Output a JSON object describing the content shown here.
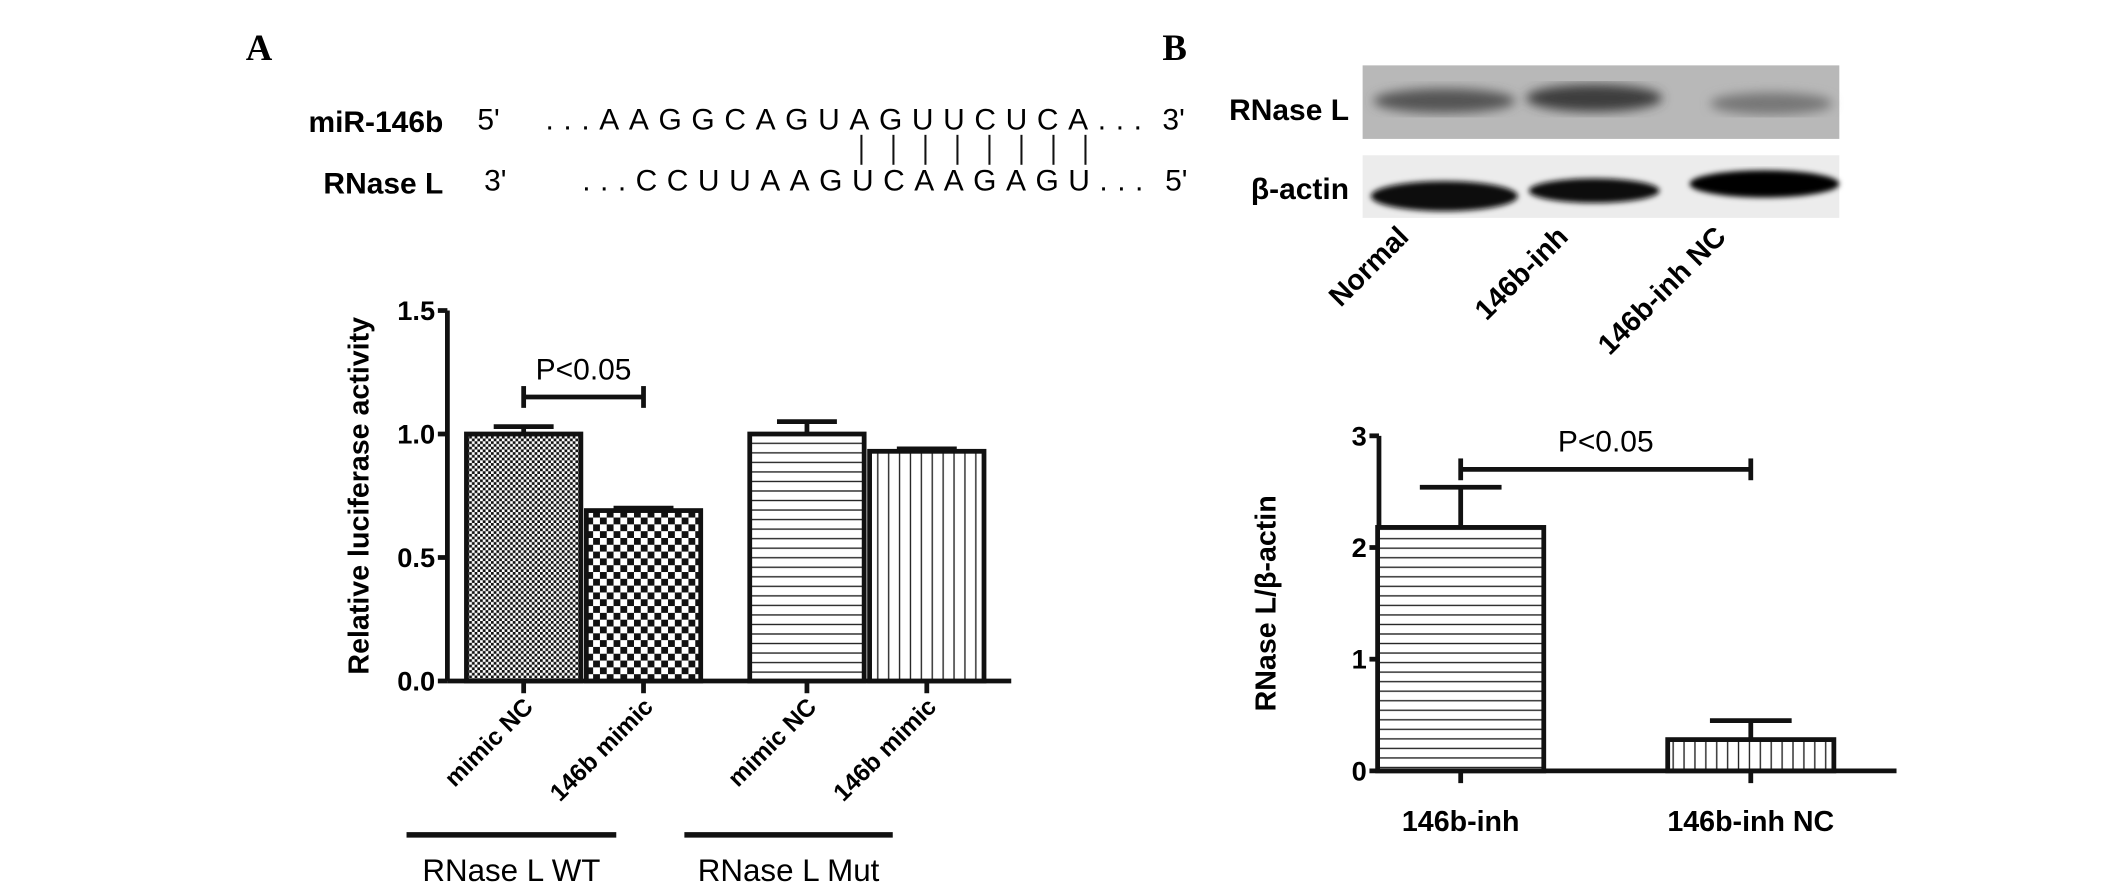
{
  "panels": {
    "a": "A",
    "b": "B"
  },
  "sequence": {
    "mir_label": "miR-146b",
    "mir_5": "5'",
    "mir_seq": "...AAGGCAGUAGUUCUCA...",
    "mir_3": "3'",
    "target_label": "RNase L",
    "target_3": "3'",
    "target_seq": "...CCUUAAGUCAAGAGU...",
    "target_5": "5'",
    "pair_count": 8
  },
  "blot": {
    "rows": [
      "RNase L",
      "β-actin"
    ],
    "lanes": [
      "Normal",
      "146b-inh",
      "146b-inh NC"
    ]
  },
  "chart_data": [
    {
      "type": "bar",
      "ylabel": "Relative luciferase activity",
      "ylim": [
        0,
        1.5
      ],
      "yticks": [
        "0.0",
        "0.5",
        "1.0",
        "1.5"
      ],
      "categories": [
        "mimic NC",
        "146b mimic",
        "mimic NC",
        "146b mimic"
      ],
      "groups": [
        {
          "label": "RNase L WT",
          "members": [
            0,
            1
          ]
        },
        {
          "label": "RNase L Mut",
          "members": [
            2,
            3
          ]
        }
      ],
      "values": [
        1.0,
        0.69,
        1.0,
        0.93
      ],
      "errors": [
        0.03,
        0.01,
        0.05,
        0.01
      ],
      "fill_patterns": [
        "fine-checker",
        "coarse-checker",
        "horizontal-lines",
        "vertical-lines"
      ],
      "annotations": [
        {
          "text": "P<0.05",
          "between": [
            0,
            1
          ],
          "y": 1.15
        }
      ]
    },
    {
      "type": "bar",
      "ylabel": "RNase L/β-actin",
      "ylim": [
        0,
        3
      ],
      "yticks": [
        "0",
        "1",
        "2",
        "3"
      ],
      "categories": [
        "146b-inh",
        "146b-inh NC"
      ],
      "values": [
        2.18,
        0.28
      ],
      "errors": [
        0.36,
        0.17
      ],
      "fill_patterns": [
        "horizontal-lines",
        "vertical-lines"
      ],
      "annotations": [
        {
          "text": "P<0.05",
          "between": [
            0,
            1
          ],
          "y": 2.7
        }
      ]
    }
  ]
}
